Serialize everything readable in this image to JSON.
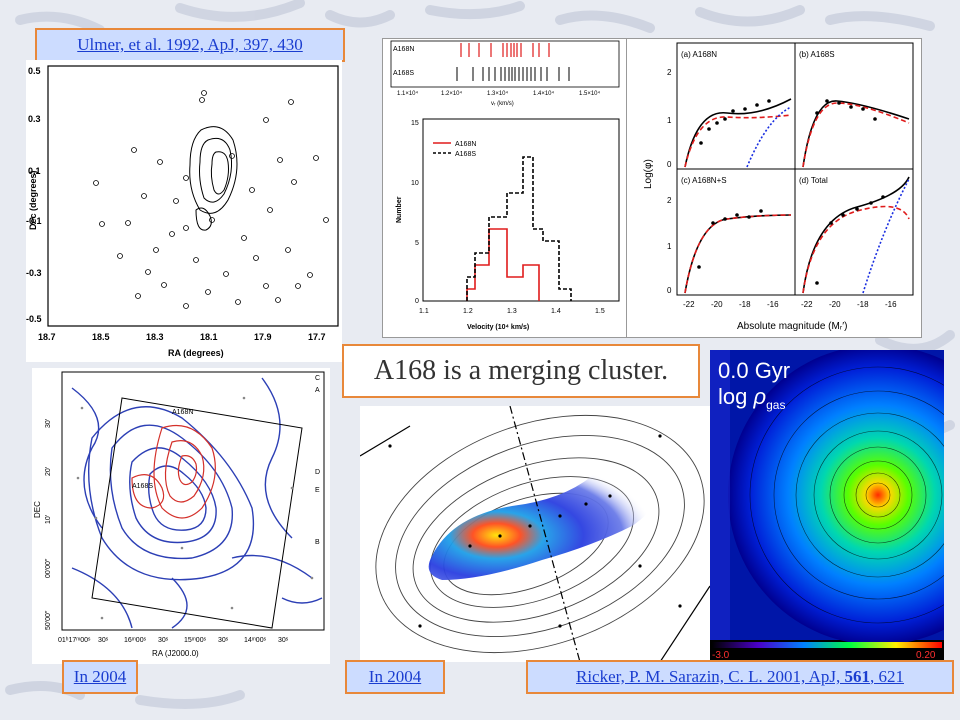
{
  "slide": {
    "title": "A168 is a merging cluster."
  },
  "captions": {
    "ulmer": "Ulmer, et al. 1992, ApJ, 397, 430",
    "in2004_left": "In 2004",
    "in2004_mid": "In 2004",
    "ricker_prefix": "Ricker, P. M. Sarazin, C. L. 2001, ApJ, ",
    "ricker_bold": "561",
    "ricker_suffix": ", 621"
  },
  "ulmer_plot": {
    "xlabel": "RA (degrees)",
    "ylabel": "Dec (degrees)",
    "xticks": [
      "18.7",
      "18.5",
      "18.3",
      "18.1",
      "17.9",
      "17.7"
    ],
    "yticks": [
      "0.5",
      "0.3",
      "0.1",
      "-0.1",
      "-0.3",
      "-0.5"
    ]
  },
  "velocity_fig": {
    "label_north": "A168N",
    "label_south": "A168S",
    "strip_ticks": [
      "1.1×10⁴",
      "1.2×10⁴",
      "1.3×10⁴",
      "1.4×10⁴",
      "1.5×10⁴"
    ],
    "strip_xlabel": "vᵣ (km/s)",
    "hist_ylabel": "Number",
    "hist_xlabel": "Velocity (10⁴ km/s)",
    "hist_xticks": [
      "1.1",
      "1.2",
      "1.3",
      "1.4",
      "1.5"
    ],
    "hist_yticks": [
      "15",
      "10",
      "5",
      "0"
    ],
    "legend_north": "A168N",
    "legend_south": "A168S",
    "north_color": "#e01c1c",
    "south_color": "#000000"
  },
  "lf_fig": {
    "panels": [
      "(a)  A168N",
      "(b)  A168S",
      "(c)  A168N+S",
      "(d)  Total"
    ],
    "ylabel": "Log(φ)",
    "xlabel": "Absolute magnitude (Mᵣ′)",
    "xticks": [
      "-22",
      "-20",
      "-18",
      "-16"
    ],
    "yticks": [
      "2",
      "1",
      "0"
    ]
  },
  "xray_map": {
    "ylabel": "DEC",
    "xlabel": "RA (J2000.0)",
    "yticks": [
      "30′",
      "20′",
      "10′",
      "00′00″",
      "50′00″"
    ],
    "xticks": [
      "01ʰ17ᵐ00ˢ",
      "30ˢ",
      "16ᵐ00ˢ",
      "30ˢ",
      "15ᵐ00ˢ",
      "30ˢ",
      "14ᵐ00ˢ",
      "30ˢ"
    ],
    "marker_n": "A168N",
    "marker_s": "A168S",
    "side_labels": [
      "C",
      "A",
      "D",
      "E",
      "B"
    ]
  },
  "sim_panel": {
    "time_label": "0.0 Gyr",
    "quantity_prefix": "log ",
    "quantity_symbol": "ρ",
    "quantity_sub": "gas",
    "colorbar_min": "-3.0",
    "colorbar_max": "0.20"
  }
}
